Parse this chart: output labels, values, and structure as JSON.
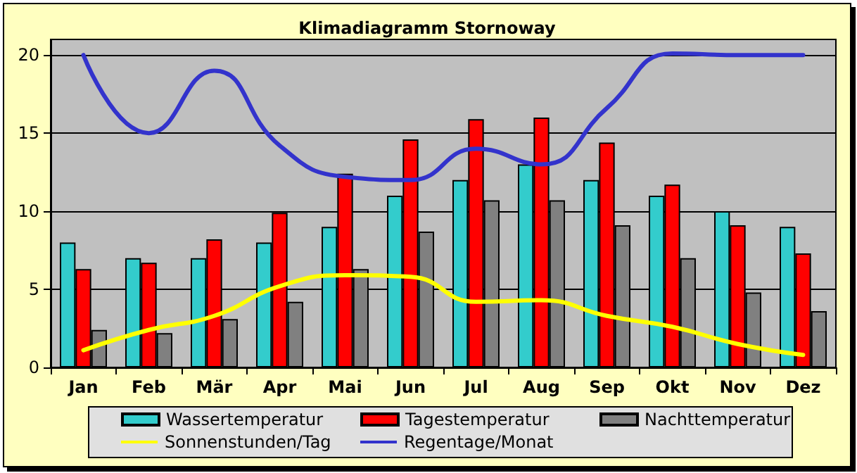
{
  "chart_data": {
    "type": "bar",
    "title": "Klimadiagramm Stornoway",
    "categories": [
      "Jan",
      "Feb",
      "Mär",
      "Apr",
      "Mai",
      "Jun",
      "Jul",
      "Aug",
      "Sep",
      "Okt",
      "Nov",
      "Dez"
    ],
    "series": [
      {
        "name": "Wassertemperatur",
        "color": "#33cccc",
        "values": [
          8,
          7,
          7,
          8,
          9,
          11,
          12,
          13,
          12,
          11,
          10,
          9
        ]
      },
      {
        "name": "Tagestemperatur",
        "color": "#ff0000",
        "values": [
          6.3,
          6.7,
          8.2,
          9.9,
          12.4,
          14.6,
          15.9,
          16.0,
          14.4,
          11.7,
          9.1,
          7.3
        ]
      },
      {
        "name": "Nachttemperatur",
        "color": "#808080",
        "values": [
          2.4,
          2.2,
          3.1,
          4.2,
          6.3,
          8.7,
          10.7,
          10.7,
          9.1,
          7.0,
          4.8,
          3.6
        ]
      },
      {
        "name": "Sonnenstunden/Tag",
        "type": "line",
        "color": "#ffff00",
        "values": [
          1.1,
          2.4,
          3.3,
          5.2,
          5.9,
          5.8,
          4.2,
          4.3,
          3.3,
          2.6,
          1.5,
          0.8
        ]
      },
      {
        "name": "Regentage/Monat",
        "type": "line",
        "color": "#3333cc",
        "values": [
          20,
          15,
          19,
          14.2,
          12.2,
          12,
          14,
          13,
          16.6,
          20.1,
          20,
          20
        ]
      }
    ],
    "ylim": [
      0,
      21
    ],
    "yticks": [
      0,
      5,
      10,
      15,
      20
    ],
    "grid": "y",
    "legend": "bottom",
    "marker": "none",
    "line_style": "solid"
  }
}
